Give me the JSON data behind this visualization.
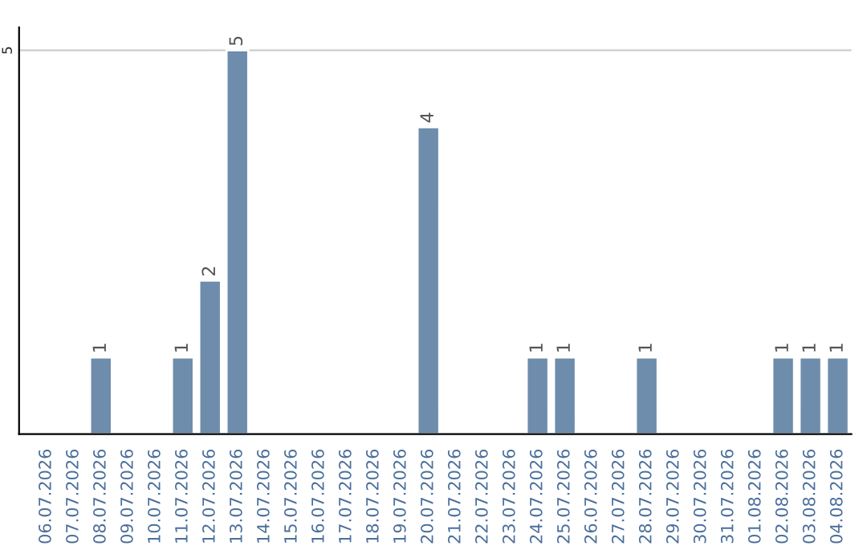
{
  "chart_data": {
    "type": "bar",
    "categories": [
      "06.07.2026",
      "07.07.2026",
      "08.07.2026",
      "09.07.2026",
      "10.07.2026",
      "11.07.2026",
      "12.07.2026",
      "13.07.2026",
      "14.07.2026",
      "15.07.2026",
      "16.07.2026",
      "17.07.2026",
      "18.07.2026",
      "19.07.2026",
      "20.07.2026",
      "21.07.2026",
      "22.07.2026",
      "23.07.2026",
      "24.07.2026",
      "25.07.2026",
      "26.07.2026",
      "27.07.2026",
      "28.07.2026",
      "29.07.2026",
      "30.07.2026",
      "31.07.2026",
      "01.08.2026",
      "02.08.2026",
      "03.08.2026",
      "04.08.2026"
    ],
    "values": [
      null,
      null,
      1,
      null,
      null,
      1,
      2,
      5,
      null,
      null,
      null,
      null,
      null,
      null,
      4,
      null,
      null,
      null,
      1,
      1,
      null,
      null,
      1,
      null,
      null,
      null,
      null,
      1,
      1,
      1
    ],
    "value_labels": [
      null,
      null,
      "1",
      null,
      null,
      "1",
      "2",
      "5",
      null,
      null,
      null,
      null,
      null,
      null,
      "4",
      null,
      null,
      null,
      "1",
      "1",
      null,
      null,
      "1",
      null,
      null,
      null,
      null,
      "1",
      "1",
      "1"
    ],
    "color": "#6e8cab",
    "ylim": [
      0,
      5.3
    ],
    "yticks": [
      5
    ],
    "grid": "y"
  }
}
